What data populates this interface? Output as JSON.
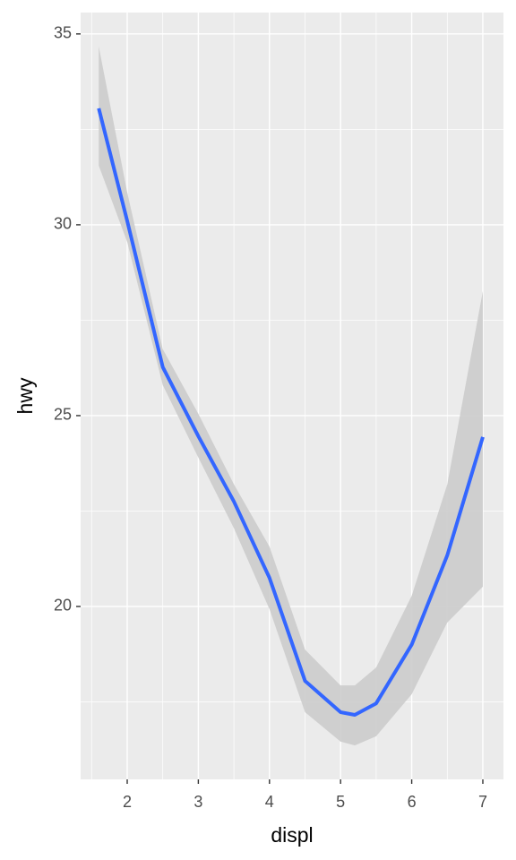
{
  "chart_data": {
    "type": "smooth",
    "x_label": "displ",
    "y_label": "hwy",
    "x": [
      1.6,
      2.0,
      2.5,
      3.0,
      3.5,
      4.0,
      4.5,
      5.0,
      5.2,
      5.5,
      6.0,
      6.5,
      7.0
    ],
    "series": [
      {
        "color": "#3366ff",
        "band_color": "#cccccc",
        "values": [
          33.05,
          30.1,
          26.27,
          24.46,
          22.75,
          20.75,
          18.05,
          17.23,
          17.16,
          17.46,
          19.0,
          21.34,
          24.44
        ],
        "lower": [
          31.55,
          29.55,
          25.8,
          23.9,
          22.05,
          19.93,
          17.23,
          16.46,
          16.36,
          16.6,
          17.7,
          19.58,
          20.52
        ],
        "upper": [
          34.67,
          30.85,
          26.74,
          25.05,
          23.2,
          21.57,
          18.87,
          17.93,
          17.93,
          18.4,
          20.28,
          23.2,
          28.26
        ]
      }
    ],
    "xlim": [
      1.345,
      7.29
    ],
    "ylim": [
      15.47,
      35.56
    ],
    "xticks": [
      2,
      3,
      4,
      5,
      6,
      7
    ],
    "yticks": [
      20,
      25,
      30,
      35
    ],
    "x_minor_grid": [
      1.5,
      2.5,
      3.5,
      4.5,
      5.5,
      6.5
    ],
    "y_minor_grid": [
      17.5,
      22.5,
      27.5,
      32.5
    ],
    "grid": true
  }
}
